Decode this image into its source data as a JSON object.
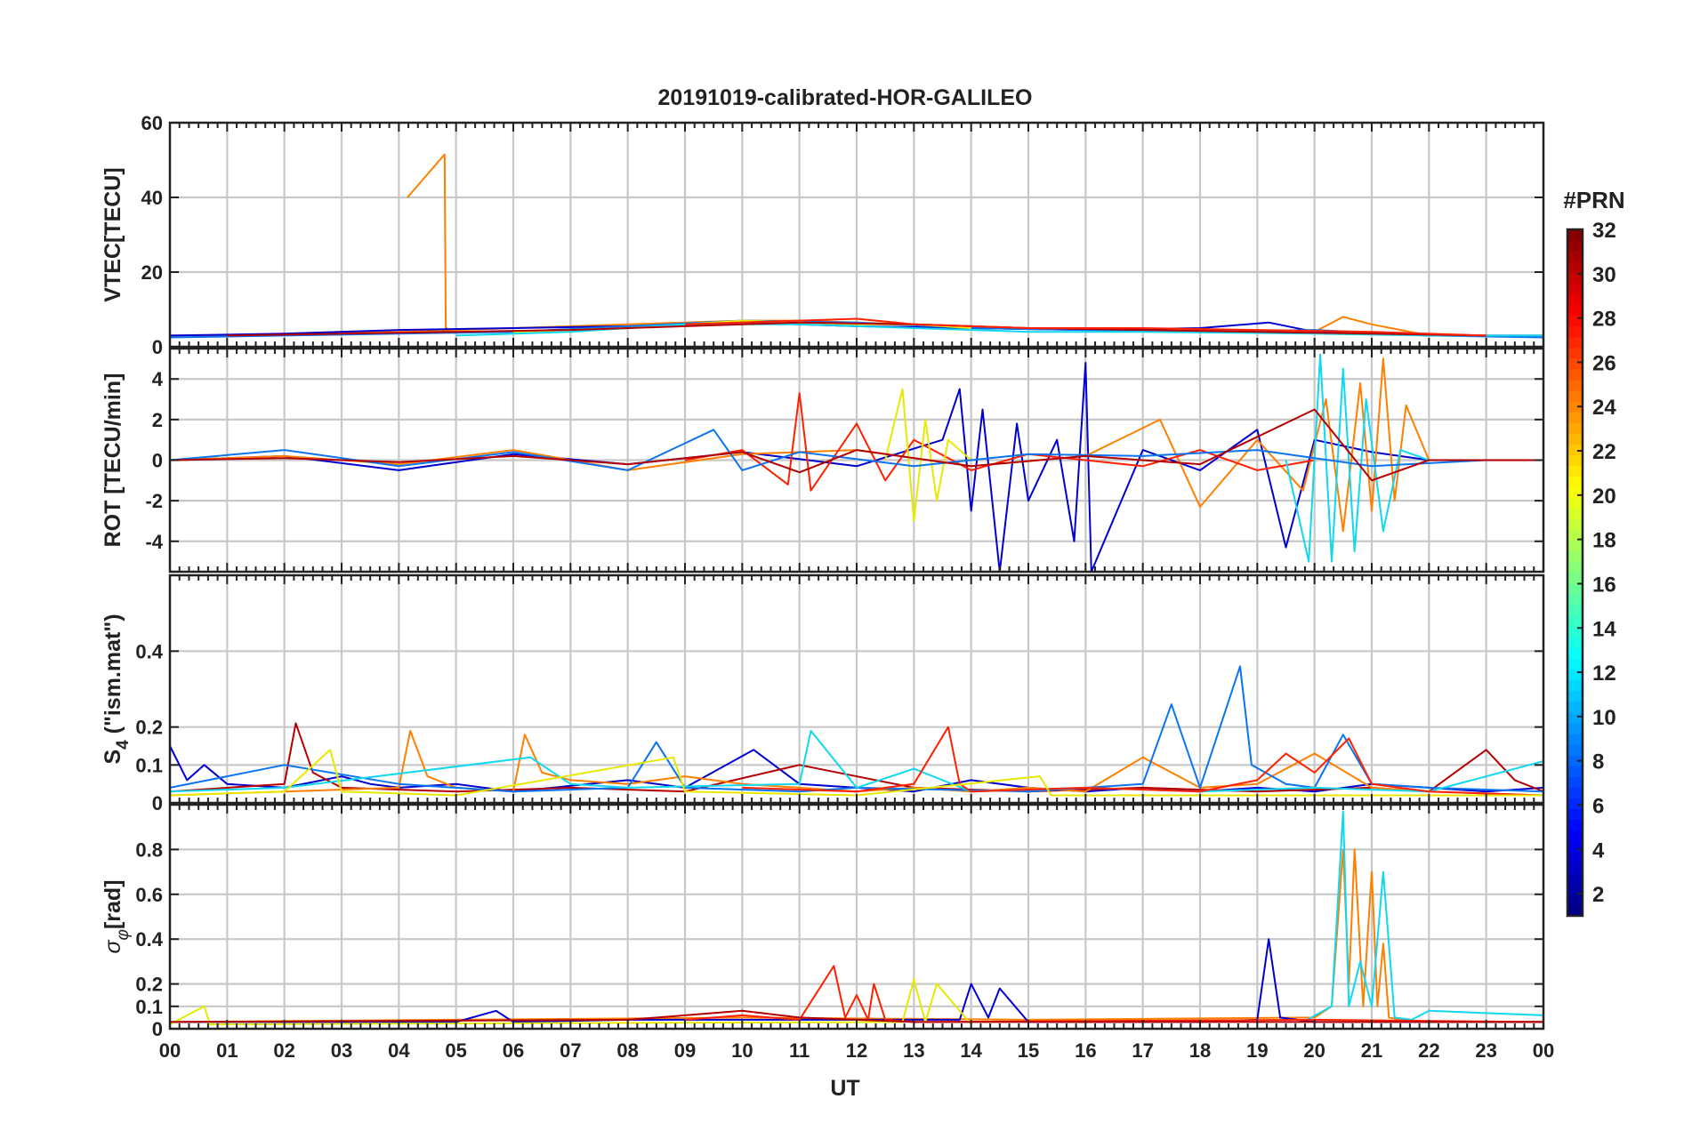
{
  "figure": {
    "title": "20191019-calibrated-HOR-GALILEO",
    "xlabel": "UT",
    "x_ticklabels": [
      "00",
      "01",
      "02",
      "03",
      "04",
      "05",
      "06",
      "07",
      "08",
      "09",
      "10",
      "11",
      "12",
      "13",
      "14",
      "15",
      "16",
      "17",
      "18",
      "19",
      "20",
      "21",
      "22",
      "23",
      "00"
    ]
  },
  "colorbar": {
    "label": "#PRN",
    "min": 1,
    "max": 32,
    "ticks": [
      2,
      4,
      6,
      8,
      10,
      12,
      14,
      16,
      18,
      20,
      22,
      24,
      26,
      28,
      30,
      32
    ],
    "colormap": "jet"
  },
  "chart_data": [
    {
      "type": "line",
      "panel": "vtec",
      "ylabel": "VTEC[TECU]",
      "ylim": [
        0,
        60
      ],
      "yticks": [
        0,
        20,
        40,
        60
      ],
      "grid": true,
      "series": [
        {
          "prn": 22,
          "color": "#ff7f00",
          "x": [
            0,
            1,
            2,
            3,
            4,
            5,
            6,
            7,
            8,
            9,
            10,
            11,
            12,
            13,
            14,
            15,
            16,
            17,
            18,
            19,
            20,
            20.5,
            21,
            22,
            23,
            24
          ],
          "values": [
            3,
            3,
            3.5,
            4,
            4,
            4.5,
            5,
            5.5,
            6,
            6.5,
            7,
            7,
            6.5,
            6,
            5.5,
            5,
            5,
            4.5,
            4.5,
            4,
            4,
            8,
            6,
            3,
            3,
            3
          ]
        },
        {
          "prn": 22,
          "color": "#ff7f00",
          "x": [
            4.15,
            4.8,
            4.82,
            4.85
          ],
          "values": [
            40,
            51.5,
            5,
            5
          ]
        },
        {
          "prn": 3,
          "color": "#0000d0",
          "x": [
            0,
            2,
            4,
            6,
            8,
            10,
            12,
            14,
            16,
            18,
            19.2,
            20,
            22,
            24
          ],
          "values": [
            3,
            3.5,
            4.5,
            5,
            5.5,
            6.5,
            5.5,
            5,
            4.5,
            5,
            6.5,
            4,
            3,
            3
          ]
        },
        {
          "prn": 9,
          "color": "#0a74f0",
          "x": [
            0,
            2,
            4,
            6,
            8,
            10,
            12,
            14,
            16,
            18,
            20,
            22,
            24
          ],
          "values": [
            2.5,
            3,
            3.5,
            4,
            5.5,
            7,
            6.5,
            5,
            4.5,
            4,
            4.5,
            3,
            2.5
          ]
        },
        {
          "prn": 20,
          "color": "#e8e800",
          "x": [
            6,
            8,
            10,
            12,
            13,
            14
          ],
          "values": [
            4,
            5,
            7,
            6,
            6,
            5
          ]
        },
        {
          "prn": 12,
          "color": "#10d8f0",
          "x": [
            5,
            7,
            9,
            11,
            13,
            15,
            17,
            20,
            22,
            24
          ],
          "values": [
            3,
            4,
            6,
            6,
            5,
            4,
            4,
            3.5,
            3,
            3
          ]
        },
        {
          "prn": 30,
          "color": "#b40000",
          "x": [
            1,
            3,
            5,
            7,
            9,
            11,
            13,
            15,
            17,
            19,
            21,
            23
          ],
          "values": [
            3,
            3.5,
            4,
            4.5,
            5.5,
            6.5,
            6,
            5,
            4.5,
            4,
            3.5,
            3
          ]
        },
        {
          "prn": 26,
          "color": "#ff2000",
          "x": [
            9,
            11,
            12,
            13,
            15,
            17,
            19,
            21,
            23
          ],
          "values": [
            6,
            7,
            7.5,
            6,
            5,
            5,
            4.5,
            4,
            3
          ]
        }
      ]
    },
    {
      "type": "line",
      "panel": "rot",
      "ylabel": "ROT [TECU/min]",
      "ylim": [
        -5.5,
        5.5
      ],
      "yticks": [
        -4,
        -2,
        0,
        2,
        4
      ],
      "grid": true,
      "series": [
        {
          "prn": 3,
          "color": "#0000d0",
          "x": [
            0,
            2,
            4,
            6,
            8,
            10,
            12,
            13.5,
            13.8,
            14,
            14.2,
            14.5,
            14.8,
            15,
            15.5,
            15.8,
            16,
            16.1,
            17,
            18,
            19,
            19.5,
            20,
            21,
            22,
            24
          ],
          "values": [
            0,
            0.2,
            -0.5,
            0.3,
            -0.2,
            0.4,
            -0.3,
            1,
            3.5,
            -2.5,
            2.5,
            -5.5,
            1.8,
            -2,
            1,
            -4,
            4.8,
            -5.5,
            0.5,
            -0.5,
            1.5,
            -4.3,
            1,
            0.4,
            0,
            0
          ]
        },
        {
          "prn": 22,
          "color": "#ff7f00",
          "x": [
            0,
            2,
            4,
            6,
            8,
            10,
            12,
            14,
            16,
            17.3,
            18,
            19,
            19.8,
            20.2,
            20.5,
            20.8,
            21,
            21.2,
            21.4,
            21.6,
            22,
            24
          ],
          "values": [
            0,
            0.2,
            -0.2,
            0.5,
            -0.5,
            0.3,
            0.5,
            -0.3,
            0.2,
            2,
            -2.3,
            1,
            -1.5,
            3,
            -3.5,
            3.8,
            -2.5,
            5,
            -2,
            2.7,
            0,
            0
          ]
        },
        {
          "prn": 26,
          "color": "#ff2000",
          "x": [
            9,
            10,
            10.8,
            11,
            11.2,
            12,
            12.5,
            13,
            14,
            15,
            16,
            17,
            18,
            19,
            20
          ],
          "values": [
            0,
            0.5,
            -1.2,
            3.3,
            -1.5,
            1.8,
            -1,
            1,
            -0.5,
            0.3,
            0,
            -0.3,
            0.5,
            -0.5,
            0
          ]
        },
        {
          "prn": 20,
          "color": "#e8e800",
          "x": [
            12.5,
            12.8,
            13,
            13.2,
            13.4,
            13.6,
            14
          ],
          "values": [
            0,
            3.5,
            -3,
            2,
            -2,
            1,
            0
          ]
        },
        {
          "prn": 12,
          "color": "#10d8f0",
          "x": [
            19.5,
            19.9,
            20.1,
            20.3,
            20.5,
            20.7,
            20.9,
            21.2,
            21.5,
            22,
            24
          ],
          "values": [
            0,
            -5,
            5.2,
            -5,
            4.5,
            -4.5,
            3,
            -3.5,
            0.5,
            0,
            0
          ]
        },
        {
          "prn": 9,
          "color": "#0a74f0",
          "x": [
            0,
            2,
            4,
            6,
            8,
            9.5,
            10,
            11,
            13,
            15,
            17,
            19,
            21,
            23,
            24
          ],
          "values": [
            0,
            0.5,
            -0.3,
            0.4,
            -0.5,
            1.5,
            -0.5,
            0.4,
            -0.3,
            0.3,
            0.2,
            0.5,
            -0.3,
            0,
            0
          ]
        },
        {
          "prn": 30,
          "color": "#b40000",
          "x": [
            0,
            2,
            4,
            6,
            8,
            10,
            11,
            12,
            14,
            16,
            18,
            20,
            21,
            22,
            24
          ],
          "values": [
            0,
            0.1,
            -0.1,
            0.2,
            -0.2,
            0.4,
            -0.6,
            0.5,
            -0.3,
            0.2,
            -0.2,
            2.5,
            -1,
            0,
            0
          ]
        }
      ]
    },
    {
      "type": "line",
      "panel": "s4",
      "ylabel": "S4 (\"ism.mat\")",
      "ylim": [
        0,
        0.6
      ],
      "yticks": [
        0,
        0.1,
        0.2,
        0.4
      ],
      "grid": true,
      "series": [
        {
          "prn": 3,
          "color": "#0000d0",
          "x": [
            0,
            0.3,
            0.6,
            1,
            2,
            3,
            3.5,
            4,
            5,
            6,
            8,
            9,
            10.2,
            11,
            12,
            13,
            14,
            15,
            16,
            17,
            18,
            19,
            20,
            21,
            22,
            23,
            24
          ],
          "values": [
            0.15,
            0.06,
            0.1,
            0.05,
            0.04,
            0.07,
            0.05,
            0.04,
            0.05,
            0.03,
            0.06,
            0.04,
            0.14,
            0.05,
            0.04,
            0.03,
            0.06,
            0.04,
            0.03,
            0.04,
            0.03,
            0.04,
            0.03,
            0.05,
            0.04,
            0.03,
            0.04
          ]
        },
        {
          "prn": 30,
          "color": "#b40000",
          "x": [
            0,
            2,
            2.2,
            2.5,
            3,
            5,
            7,
            9,
            11,
            13,
            15,
            17,
            19,
            21,
            22,
            23,
            23.5,
            24
          ],
          "values": [
            0.03,
            0.05,
            0.21,
            0.08,
            0.04,
            0.03,
            0.04,
            0.03,
            0.1,
            0.04,
            0.03,
            0.04,
            0.03,
            0.04,
            0.03,
            0.14,
            0.06,
            0.03
          ]
        },
        {
          "prn": 22,
          "color": "#ff7f00",
          "x": [
            0,
            2,
            4,
            4.2,
            4.5,
            5,
            6,
            6.2,
            6.5,
            7,
            8,
            9,
            10,
            11,
            12,
            13,
            14,
            15,
            16,
            17,
            18,
            19,
            20,
            21,
            22,
            24
          ],
          "values": [
            0.02,
            0.03,
            0.04,
            0.19,
            0.07,
            0.04,
            0.03,
            0.18,
            0.08,
            0.06,
            0.05,
            0.07,
            0.05,
            0.04,
            0.03,
            0.04,
            0.03,
            0.04,
            0.03,
            0.12,
            0.04,
            0.05,
            0.13,
            0.04,
            0.03,
            0.02
          ]
        },
        {
          "prn": 9,
          "color": "#0a74f0",
          "x": [
            0,
            2,
            4,
            6,
            8,
            8.5,
            9,
            11,
            12,
            15,
            17,
            17.5,
            18,
            18.7,
            18.9,
            19.5,
            20,
            20.5,
            21,
            22,
            24
          ],
          "values": [
            0.04,
            0.1,
            0.05,
            0.03,
            0.04,
            0.16,
            0.04,
            0.03,
            0.04,
            0.03,
            0.05,
            0.26,
            0.04,
            0.36,
            0.1,
            0.05,
            0.04,
            0.18,
            0.05,
            0.04,
            0.03
          ]
        },
        {
          "prn": 12,
          "color": "#10d8f0",
          "x": [
            0,
            2,
            6.3,
            7,
            8,
            11,
            11.2,
            12,
            13,
            14,
            16,
            18,
            20,
            22,
            24
          ],
          "values": [
            0.03,
            0.04,
            0.12,
            0.05,
            0.04,
            0.05,
            0.19,
            0.04,
            0.09,
            0.03,
            0.04,
            0.03,
            0.04,
            0.03,
            0.11
          ]
        },
        {
          "prn": 26,
          "color": "#ff2000",
          "x": [
            10,
            12,
            13,
            13.6,
            13.8,
            14,
            16,
            18,
            19,
            19.5,
            20,
            20.6,
            21,
            22,
            24
          ],
          "values": [
            0.04,
            0.03,
            0.05,
            0.2,
            0.05,
            0.03,
            0.04,
            0.03,
            0.06,
            0.13,
            0.08,
            0.17,
            0.05,
            0.03,
            0.02
          ]
        },
        {
          "prn": 20,
          "color": "#e8e800",
          "x": [
            0,
            2,
            2.8,
            3,
            5,
            8.8,
            9,
            12,
            15.2,
            15.4,
            16,
            20,
            24
          ],
          "values": [
            0.02,
            0.03,
            0.14,
            0.03,
            0.02,
            0.12,
            0.03,
            0.02,
            0.07,
            0.02,
            0.02,
            0.02,
            0.02
          ]
        }
      ]
    },
    {
      "type": "line",
      "panel": "sigma_phi",
      "ylabel": "σφ[rad]",
      "ylim": [
        0,
        1
      ],
      "yticks": [
        0,
        0.1,
        0.2,
        0.4,
        0.6,
        0.8
      ],
      "grid": true,
      "series": [
        {
          "prn": 22,
          "color": "#ff7f00",
          "x": [
            0,
            5,
            10,
            15,
            20,
            20.3,
            20.5,
            20.6,
            20.7,
            20.85,
            21,
            21.1,
            21.2,
            21.3,
            21.5,
            22,
            24
          ],
          "values": [
            0.03,
            0.04,
            0.05,
            0.04,
            0.05,
            0.1,
            0.8,
            0.2,
            0.8,
            0.1,
            0.7,
            0.1,
            0.38,
            0.05,
            0.04,
            0.03,
            0.03
          ]
        },
        {
          "prn": 12,
          "color": "#10d8f0",
          "x": [
            19.8,
            20.3,
            20.5,
            20.6,
            20.8,
            21,
            21.2,
            21.4,
            21.7,
            22,
            24
          ],
          "values": [
            0.03,
            0.1,
            0.97,
            0.1,
            0.3,
            0.1,
            0.7,
            0.05,
            0.04,
            0.08,
            0.06
          ]
        },
        {
          "prn": 3,
          "color": "#0000d0",
          "x": [
            0,
            5,
            5.7,
            6,
            8,
            13.8,
            14,
            14.3,
            14.5,
            15,
            18,
            19,
            19.2,
            19.4,
            20,
            24
          ],
          "values": [
            0.03,
            0.03,
            0.08,
            0.03,
            0.04,
            0.04,
            0.2,
            0.05,
            0.18,
            0.03,
            0.03,
            0.04,
            0.4,
            0.05,
            0.03,
            0.03
          ]
        },
        {
          "prn": 26,
          "color": "#ff2000",
          "x": [
            9,
            10,
            11,
            11.6,
            11.8,
            12,
            12.2,
            12.3,
            12.5,
            13,
            20,
            24
          ],
          "values": [
            0.04,
            0.06,
            0.04,
            0.28,
            0.05,
            0.15,
            0.04,
            0.2,
            0.04,
            0.03,
            0.04,
            0.03
          ]
        },
        {
          "prn": 20,
          "color": "#e8e800",
          "x": [
            0,
            0.6,
            0.7,
            12.8,
            13.0,
            13.2,
            13.4,
            14
          ],
          "values": [
            0.02,
            0.1,
            0.02,
            0.03,
            0.22,
            0.03,
            0.2,
            0.02
          ]
        },
        {
          "prn": 30,
          "color": "#b40000",
          "x": [
            0,
            8,
            9,
            10,
            11,
            12,
            13,
            16,
            20,
            24
          ],
          "values": [
            0.03,
            0.04,
            0.06,
            0.08,
            0.05,
            0.04,
            0.03,
            0.03,
            0.03,
            0.03
          ]
        }
      ]
    }
  ]
}
